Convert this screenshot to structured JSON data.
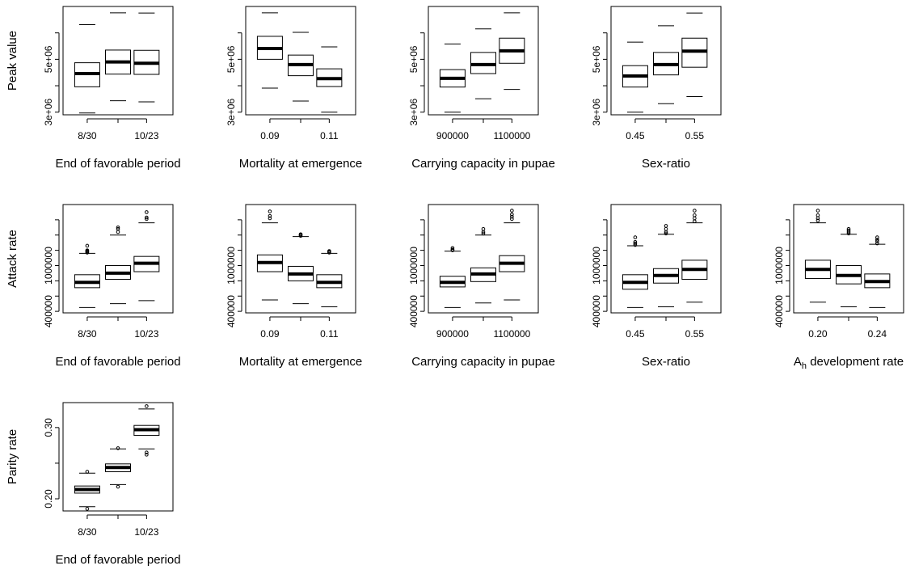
{
  "chart_data": [
    {
      "type": "box",
      "row": 0,
      "col": 0,
      "ylabel": "Peak value",
      "xlabel": "End of favorable period",
      "ylim": [
        2900000,
        7000000
      ],
      "yticks": [
        3000000,
        4000000,
        5000000,
        6000000
      ],
      "ytick_labels": [
        "3e+06",
        "",
        "5e+06",
        ""
      ],
      "xtick_labels": [
        "8/30",
        "",
        "10/23"
      ],
      "boxes": [
        {
          "whislo": 2970000,
          "q1": 3960000,
          "med": 4460000,
          "q3": 4870000,
          "whishi": 6310000,
          "outliers": []
        },
        {
          "whislo": 3430000,
          "q1": 4440000,
          "med": 4900000,
          "q3": 5350000,
          "whishi": 6760000,
          "outliers": []
        },
        {
          "whislo": 3390000,
          "q1": 4430000,
          "med": 4850000,
          "q3": 5340000,
          "whishi": 6750000,
          "outliers": []
        }
      ]
    },
    {
      "type": "box",
      "row": 0,
      "col": 1,
      "ylabel": "",
      "xlabel": "Mortality at emergence",
      "ylim": [
        2900000,
        7000000
      ],
      "yticks": [
        3000000,
        4000000,
        5000000,
        6000000
      ],
      "ytick_labels": [
        "3e+06",
        "",
        "5e+06",
        ""
      ],
      "xtick_labels": [
        "0.09",
        "",
        "0.11"
      ],
      "boxes": [
        {
          "whislo": 3910000,
          "q1": 5000000,
          "med": 5410000,
          "q3": 5870000,
          "whishi": 6760000,
          "outliers": []
        },
        {
          "whislo": 3420000,
          "q1": 4380000,
          "med": 4800000,
          "q3": 5160000,
          "whishi": 6020000,
          "outliers": []
        },
        {
          "whislo": 3000000,
          "q1": 3970000,
          "med": 4270000,
          "q3": 4640000,
          "whishi": 5470000,
          "outliers": []
        }
      ]
    },
    {
      "type": "box",
      "row": 0,
      "col": 2,
      "ylabel": "",
      "xlabel": "Carrying capacity in pupae",
      "ylim": [
        2900000,
        7000000
      ],
      "yticks": [
        3000000,
        4000000,
        5000000,
        6000000
      ],
      "ytick_labels": [
        "3e+06",
        "",
        "5e+06",
        ""
      ],
      "xtick_labels": [
        "900000",
        "",
        "1100000"
      ],
      "boxes": [
        {
          "whislo": 3000000,
          "q1": 3950000,
          "med": 4280000,
          "q3": 4610000,
          "whishi": 5580000,
          "outliers": []
        },
        {
          "whislo": 3510000,
          "q1": 4460000,
          "med": 4800000,
          "q3": 5260000,
          "whishi": 6150000,
          "outliers": []
        },
        {
          "whislo": 3860000,
          "q1": 4850000,
          "med": 5320000,
          "q3": 5800000,
          "whishi": 6760000,
          "outliers": []
        }
      ]
    },
    {
      "type": "box",
      "row": 0,
      "col": 3,
      "ylabel": "",
      "xlabel": "Sex-ratio",
      "ylim": [
        2900000,
        7000000
      ],
      "yticks": [
        3000000,
        4000000,
        5000000,
        6000000
      ],
      "ytick_labels": [
        "3e+06",
        "",
        "5e+06",
        ""
      ],
      "xtick_labels": [
        "0.45",
        "",
        "0.55"
      ],
      "boxes": [
        {
          "whislo": 3000000,
          "q1": 3950000,
          "med": 4370000,
          "q3": 4760000,
          "whishi": 5650000,
          "outliers": []
        },
        {
          "whislo": 3320000,
          "q1": 4410000,
          "med": 4800000,
          "q3": 5260000,
          "whishi": 6270000,
          "outliers": []
        },
        {
          "whislo": 3590000,
          "q1": 4700000,
          "med": 5310000,
          "q3": 5800000,
          "whishi": 6750000,
          "outliers": []
        }
      ]
    },
    {
      "type": "box",
      "row": 1,
      "col": 0,
      "ylabel": "Attack rate",
      "xlabel": "End of favorable period",
      "ylim": [
        380000,
        1800000
      ],
      "yticks": [
        400000,
        600000,
        800000,
        1000000,
        1200000,
        1400000,
        1600000
      ],
      "ytick_labels": [
        "400000",
        "",
        "",
        "1000000",
        "",
        "",
        ""
      ],
      "xtick_labels": [
        "8/30",
        "",
        "10/23"
      ],
      "boxes": [
        {
          "whislo": 450000,
          "q1": 710000,
          "med": 780000,
          "q3": 880000,
          "whishi": 1160000,
          "outliers": [
            1170000,
            1180000,
            1190000,
            1200000,
            1260000
          ]
        },
        {
          "whislo": 500000,
          "q1": 820000,
          "med": 900000,
          "q3": 1000000,
          "whishi": 1400000,
          "outliers": [
            1440000,
            1480000,
            1500000
          ]
        },
        {
          "whislo": 540000,
          "q1": 920000,
          "med": 1030000,
          "q3": 1120000,
          "whishi": 1560000,
          "outliers": [
            1610000,
            1630000,
            1700000
          ]
        }
      ]
    },
    {
      "type": "box",
      "row": 1,
      "col": 1,
      "ylabel": "",
      "xlabel": "Mortality at emergence",
      "ylim": [
        380000,
        1800000
      ],
      "yticks": [
        400000,
        600000,
        800000,
        1000000,
        1200000,
        1400000,
        1600000
      ],
      "ytick_labels": [
        "400000",
        "",
        "",
        "1000000",
        "",
        "",
        ""
      ],
      "xtick_labels": [
        "0.09",
        "",
        "0.11"
      ],
      "boxes": [
        {
          "whislo": 550000,
          "q1": 920000,
          "med": 1040000,
          "q3": 1140000,
          "whishi": 1560000,
          "outliers": [
            1620000,
            1650000,
            1710000
          ]
        },
        {
          "whislo": 500000,
          "q1": 800000,
          "med": 890000,
          "q3": 990000,
          "whishi": 1380000,
          "outliers": [
            1390000,
            1400000,
            1410000
          ]
        },
        {
          "whislo": 460000,
          "q1": 710000,
          "med": 780000,
          "q3": 880000,
          "whishi": 1160000,
          "outliers": [
            1170000,
            1180000,
            1190000
          ]
        }
      ]
    },
    {
      "type": "box",
      "row": 1,
      "col": 2,
      "ylabel": "",
      "xlabel": "Carrying capacity in pupae",
      "ylim": [
        380000,
        1800000
      ],
      "yticks": [
        400000,
        600000,
        800000,
        1000000,
        1200000,
        1400000,
        1600000
      ],
      "ytick_labels": [
        "400000",
        "",
        "",
        "1000000",
        "",
        "",
        ""
      ],
      "xtick_labels": [
        "900000",
        "",
        "1100000"
      ],
      "boxes": [
        {
          "whislo": 450000,
          "q1": 720000,
          "med": 780000,
          "q3": 860000,
          "whishi": 1190000,
          "outliers": [
            1200000,
            1210000,
            1230000
          ]
        },
        {
          "whislo": 510000,
          "q1": 790000,
          "med": 890000,
          "q3": 970000,
          "whishi": 1400000,
          "outliers": [
            1420000,
            1440000,
            1480000
          ]
        },
        {
          "whislo": 550000,
          "q1": 920000,
          "med": 1030000,
          "q3": 1130000,
          "whishi": 1560000,
          "outliers": [
            1610000,
            1640000,
            1670000,
            1720000
          ]
        }
      ]
    },
    {
      "type": "box",
      "row": 1,
      "col": 3,
      "ylabel": "",
      "xlabel": "Sex-ratio",
      "ylim": [
        380000,
        1800000
      ],
      "yticks": [
        400000,
        600000,
        800000,
        1000000,
        1200000,
        1400000,
        1600000
      ],
      "ytick_labels": [
        "400000",
        "",
        "",
        "1000000",
        "",
        "",
        ""
      ],
      "xtick_labels": [
        "0.45",
        "",
        "0.55"
      ],
      "boxes": [
        {
          "whislo": 450000,
          "q1": 690000,
          "med": 780000,
          "q3": 880000,
          "whishi": 1260000,
          "outliers": [
            1270000,
            1290000,
            1310000,
            1370000
          ]
        },
        {
          "whislo": 460000,
          "q1": 770000,
          "med": 870000,
          "q3": 960000,
          "whishi": 1410000,
          "outliers": [
            1420000,
            1440000,
            1480000,
            1520000
          ]
        },
        {
          "whislo": 520000,
          "q1": 820000,
          "med": 950000,
          "q3": 1070000,
          "whishi": 1560000,
          "outliers": [
            1580000,
            1620000,
            1660000,
            1720000
          ]
        }
      ]
    },
    {
      "type": "box",
      "row": 1,
      "col": 4,
      "ylabel": "",
      "xlabel": "A_h development rate",
      "ylim": [
        380000,
        1800000
      ],
      "yticks": [
        400000,
        600000,
        800000,
        1000000,
        1200000,
        1400000,
        1600000
      ],
      "ytick_labels": [
        "400000",
        "",
        "",
        "1000000",
        "",
        "",
        ""
      ],
      "xtick_labels": [
        "0.20",
        "",
        "0.24"
      ],
      "boxes": [
        {
          "whislo": 520000,
          "q1": 830000,
          "med": 950000,
          "q3": 1070000,
          "whishi": 1560000,
          "outliers": [
            1590000,
            1620000,
            1660000,
            1720000
          ]
        },
        {
          "whislo": 460000,
          "q1": 760000,
          "med": 870000,
          "q3": 1000000,
          "whishi": 1410000,
          "outliers": [
            1420000,
            1440000,
            1460000,
            1480000
          ]
        },
        {
          "whislo": 450000,
          "q1": 710000,
          "med": 790000,
          "q3": 890000,
          "whishi": 1280000,
          "outliers": [
            1290000,
            1320000,
            1340000,
            1370000
          ]
        }
      ]
    },
    {
      "type": "box",
      "row": 2,
      "col": 0,
      "ylabel": "Parity rate",
      "xlabel": "End of favorable period",
      "ylim": [
        0.183,
        0.335
      ],
      "yticks": [
        0.2,
        0.25,
        0.3
      ],
      "ytick_labels": [
        "0.20",
        "",
        "0.30"
      ],
      "xtick_labels": [
        "8/30",
        "",
        "10/23"
      ],
      "boxes": [
        {
          "whislo": 0.189,
          "q1": 0.208,
          "med": 0.213,
          "q3": 0.218,
          "whishi": 0.236,
          "outliers": [
            0.186,
            0.238
          ]
        },
        {
          "whislo": 0.22,
          "q1": 0.238,
          "med": 0.244,
          "q3": 0.249,
          "whishi": 0.27,
          "outliers": [
            0.217,
            0.271
          ]
        },
        {
          "whislo": 0.27,
          "q1": 0.289,
          "med": 0.297,
          "q3": 0.303,
          "whishi": 0.326,
          "outliers": [
            0.262,
            0.265,
            0.33
          ]
        }
      ]
    }
  ]
}
